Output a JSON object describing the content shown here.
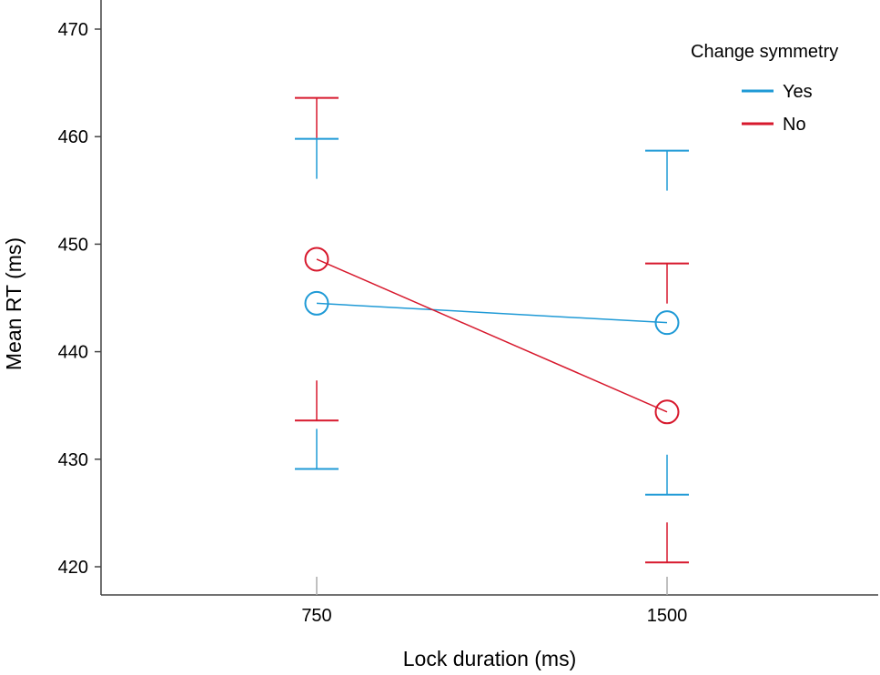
{
  "chart_data": {
    "type": "line",
    "xlabel": "Lock duration (ms)",
    "ylabel": "Mean RT (ms)",
    "categories": [
      "750",
      "1500"
    ],
    "ylim": [
      416,
      473
    ],
    "yticks": [
      420,
      430,
      440,
      450,
      460,
      470
    ],
    "grid": false,
    "legend": {
      "title": "Change symmetry",
      "position": "top-right"
    },
    "series": [
      {
        "name": "Yes",
        "color": "#1f9ad6",
        "values": [
          444.5,
          442.7
        ],
        "error_lower": [
          429.1,
          426.7
        ],
        "error_upper": [
          459.8,
          458.7
        ]
      },
      {
        "name": "No",
        "color": "#d7192d",
        "values": [
          448.6,
          434.4
        ],
        "error_lower": [
          433.6,
          420.4
        ],
        "error_upper": [
          463.6,
          448.2
        ]
      }
    ]
  }
}
